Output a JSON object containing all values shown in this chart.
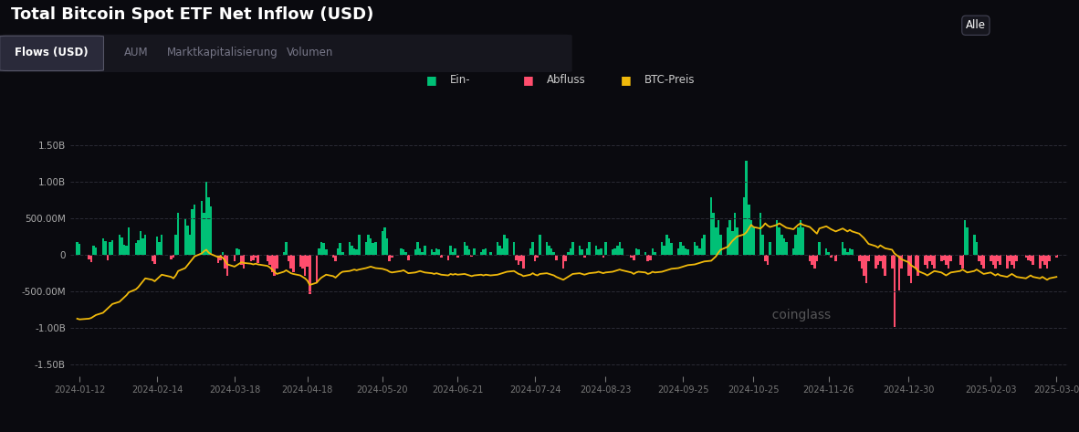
{
  "title": "Total Bitcoin Spot ETF Net Inflow (USD)",
  "background_color": "#0a0a0f",
  "text_color": "#ffffff",
  "tab_labels": [
    "Flows (USD)",
    "AUM",
    "Marktkapitalisierung",
    "Volumen"
  ],
  "dropdown_label": "Alle",
  "ytick_values": [
    -1500000000,
    -1000000000,
    -500000000,
    0,
    500000000,
    1000000000,
    1500000000
  ],
  "ytick_labels": [
    "-1.50B",
    "-1.00B",
    "-500.00M",
    "0",
    "500.00M",
    "1.00B",
    "1.50B"
  ],
  "ylim": [
    -1650000000.0,
    1650000000.0
  ],
  "bar_color_positive": "#00c076",
  "bar_color_negative": "#ff4d6d",
  "line_color": "#f0b90b",
  "grid_color": "#2a2a2a",
  "watermark": "coinglass",
  "xtick_dates": [
    "2024-01-12",
    "2024-02-14",
    "2024-03-18",
    "2024-04-18",
    "2024-05-20",
    "2024-06-21",
    "2024-07-24",
    "2024-08-23",
    "2024-09-25",
    "2024-10-25",
    "2024-11-26",
    "2024-12-30",
    "2025-02-03",
    "2025-03-0"
  ],
  "dates": [
    "2024-01-11",
    "2024-01-12",
    "2024-01-16",
    "2024-01-17",
    "2024-01-18",
    "2024-01-19",
    "2024-01-22",
    "2024-01-23",
    "2024-01-24",
    "2024-01-25",
    "2024-01-26",
    "2024-01-29",
    "2024-01-30",
    "2024-01-31",
    "2024-02-01",
    "2024-02-02",
    "2024-02-05",
    "2024-02-06",
    "2024-02-07",
    "2024-02-08",
    "2024-02-09",
    "2024-02-12",
    "2024-02-13",
    "2024-02-14",
    "2024-02-15",
    "2024-02-16",
    "2024-02-20",
    "2024-02-21",
    "2024-02-22",
    "2024-02-23",
    "2024-02-26",
    "2024-02-27",
    "2024-02-28",
    "2024-02-29",
    "2024-03-01",
    "2024-03-04",
    "2024-03-05",
    "2024-03-06",
    "2024-03-07",
    "2024-03-08",
    "2024-03-11",
    "2024-03-12",
    "2024-03-13",
    "2024-03-14",
    "2024-03-15",
    "2024-03-18",
    "2024-03-19",
    "2024-03-20",
    "2024-03-21",
    "2024-03-22",
    "2024-03-25",
    "2024-03-26",
    "2024-03-27",
    "2024-03-28",
    "2024-04-01",
    "2024-04-02",
    "2024-04-03",
    "2024-04-04",
    "2024-04-05",
    "2024-04-08",
    "2024-04-09",
    "2024-04-10",
    "2024-04-11",
    "2024-04-12",
    "2024-04-15",
    "2024-04-16",
    "2024-04-17",
    "2024-04-18",
    "2024-04-19",
    "2024-04-22",
    "2024-04-23",
    "2024-04-24",
    "2024-04-25",
    "2024-04-26",
    "2024-04-29",
    "2024-04-30",
    "2024-05-01",
    "2024-05-02",
    "2024-05-03",
    "2024-05-06",
    "2024-05-07",
    "2024-05-08",
    "2024-05-09",
    "2024-05-10",
    "2024-05-13",
    "2024-05-14",
    "2024-05-15",
    "2024-05-16",
    "2024-05-17",
    "2024-05-20",
    "2024-05-21",
    "2024-05-22",
    "2024-05-23",
    "2024-05-24",
    "2024-05-28",
    "2024-05-29",
    "2024-05-30",
    "2024-05-31",
    "2024-06-03",
    "2024-06-04",
    "2024-06-05",
    "2024-06-06",
    "2024-06-07",
    "2024-06-10",
    "2024-06-11",
    "2024-06-12",
    "2024-06-13",
    "2024-06-14",
    "2024-06-17",
    "2024-06-18",
    "2024-06-19",
    "2024-06-20",
    "2024-06-21",
    "2024-06-24",
    "2024-06-25",
    "2024-06-26",
    "2024-06-27",
    "2024-06-28",
    "2024-07-01",
    "2024-07-02",
    "2024-07-03",
    "2024-07-05",
    "2024-07-08",
    "2024-07-09",
    "2024-07-10",
    "2024-07-11",
    "2024-07-12",
    "2024-07-15",
    "2024-07-16",
    "2024-07-17",
    "2024-07-18",
    "2024-07-19",
    "2024-07-22",
    "2024-07-23",
    "2024-07-24",
    "2024-07-25",
    "2024-07-26",
    "2024-07-29",
    "2024-07-30",
    "2024-07-31",
    "2024-08-01",
    "2024-08-02",
    "2024-08-05",
    "2024-08-06",
    "2024-08-07",
    "2024-08-08",
    "2024-08-09",
    "2024-08-12",
    "2024-08-13",
    "2024-08-14",
    "2024-08-15",
    "2024-08-16",
    "2024-08-19",
    "2024-08-20",
    "2024-08-21",
    "2024-08-22",
    "2024-08-23",
    "2024-08-26",
    "2024-08-27",
    "2024-08-28",
    "2024-08-29",
    "2024-08-30",
    "2024-09-03",
    "2024-09-04",
    "2024-09-05",
    "2024-09-06",
    "2024-09-09",
    "2024-09-10",
    "2024-09-11",
    "2024-09-12",
    "2024-09-13",
    "2024-09-16",
    "2024-09-17",
    "2024-09-18",
    "2024-09-19",
    "2024-09-20",
    "2024-09-23",
    "2024-09-24",
    "2024-09-25",
    "2024-09-26",
    "2024-09-27",
    "2024-09-30",
    "2024-10-01",
    "2024-10-02",
    "2024-10-03",
    "2024-10-04",
    "2024-10-07",
    "2024-10-08",
    "2024-10-09",
    "2024-10-10",
    "2024-10-11",
    "2024-10-14",
    "2024-10-15",
    "2024-10-16",
    "2024-10-17",
    "2024-10-18",
    "2024-10-21",
    "2024-10-22",
    "2024-10-23",
    "2024-10-24",
    "2024-10-25",
    "2024-10-28",
    "2024-10-29",
    "2024-10-30",
    "2024-10-31",
    "2024-11-01",
    "2024-11-04",
    "2024-11-05",
    "2024-11-06",
    "2024-11-07",
    "2024-11-08",
    "2024-11-11",
    "2024-11-12",
    "2024-11-13",
    "2024-11-14",
    "2024-11-15",
    "2024-11-18",
    "2024-11-19",
    "2024-11-20",
    "2024-11-21",
    "2024-11-22",
    "2024-11-25",
    "2024-11-26",
    "2024-11-27",
    "2024-11-29",
    "2024-12-02",
    "2024-12-03",
    "2024-12-04",
    "2024-12-05",
    "2024-12-06",
    "2024-12-09",
    "2024-12-10",
    "2024-12-11",
    "2024-12-12",
    "2024-12-13",
    "2024-12-16",
    "2024-12-17",
    "2024-12-18",
    "2024-12-19",
    "2024-12-20",
    "2024-12-23",
    "2024-12-24",
    "2024-12-26",
    "2024-12-27",
    "2024-12-30",
    "2024-12-31",
    "2025-01-02",
    "2025-01-03",
    "2025-01-06",
    "2025-01-07",
    "2025-01-08",
    "2025-01-09",
    "2025-01-10",
    "2025-01-13",
    "2025-01-14",
    "2025-01-15",
    "2025-01-16",
    "2025-01-17",
    "2025-01-21",
    "2025-01-22",
    "2025-01-23",
    "2025-01-24",
    "2025-01-27",
    "2025-01-28",
    "2025-01-29",
    "2025-01-30",
    "2025-01-31",
    "2025-02-03",
    "2025-02-04",
    "2025-02-05",
    "2025-02-06",
    "2025-02-07",
    "2025-02-10",
    "2025-02-11",
    "2025-02-12",
    "2025-02-13",
    "2025-02-14",
    "2025-02-18",
    "2025-02-19",
    "2025-02-20",
    "2025-02-21",
    "2025-02-24",
    "2025-02-25",
    "2025-02-26",
    "2025-02-27",
    "2025-02-28",
    "2025-03-03"
  ],
  "flows": [
    180000000.0,
    150000000.0,
    -60000000.0,
    -100000000.0,
    130000000.0,
    100000000.0,
    220000000.0,
    190000000.0,
    -70000000.0,
    170000000.0,
    200000000.0,
    280000000.0,
    240000000.0,
    140000000.0,
    120000000.0,
    380000000.0,
    160000000.0,
    200000000.0,
    330000000.0,
    230000000.0,
    270000000.0,
    -90000000.0,
    -120000000.0,
    250000000.0,
    180000000.0,
    280000000.0,
    -60000000.0,
    -40000000.0,
    280000000.0,
    580000000.0,
    500000000.0,
    400000000.0,
    280000000.0,
    630000000.0,
    680000000.0,
    730000000.0,
    580000000.0,
    1000000000.0,
    780000000.0,
    660000000.0,
    -110000000.0,
    -70000000.0,
    40000000.0,
    -180000000.0,
    -280000000.0,
    -90000000.0,
    90000000.0,
    70000000.0,
    -130000000.0,
    -180000000.0,
    -90000000.0,
    -70000000.0,
    -40000000.0,
    -110000000.0,
    -90000000.0,
    -130000000.0,
    -230000000.0,
    -280000000.0,
    -180000000.0,
    40000000.0,
    180000000.0,
    -90000000.0,
    -180000000.0,
    -230000000.0,
    -160000000.0,
    -180000000.0,
    -280000000.0,
    -160000000.0,
    -530000000.0,
    -380000000.0,
    90000000.0,
    180000000.0,
    160000000.0,
    70000000.0,
    -40000000.0,
    -90000000.0,
    90000000.0,
    160000000.0,
    40000000.0,
    180000000.0,
    130000000.0,
    90000000.0,
    70000000.0,
    280000000.0,
    180000000.0,
    280000000.0,
    230000000.0,
    160000000.0,
    180000000.0,
    330000000.0,
    380000000.0,
    230000000.0,
    -90000000.0,
    -40000000.0,
    90000000.0,
    70000000.0,
    40000000.0,
    -70000000.0,
    70000000.0,
    180000000.0,
    90000000.0,
    40000000.0,
    130000000.0,
    70000000.0,
    40000000.0,
    90000000.0,
    70000000.0,
    -40000000.0,
    -70000000.0,
    130000000.0,
    40000000.0,
    90000000.0,
    -40000000.0,
    180000000.0,
    130000000.0,
    70000000.0,
    -20000000.0,
    90000000.0,
    40000000.0,
    70000000.0,
    90000000.0,
    40000000.0,
    180000000.0,
    130000000.0,
    90000000.0,
    280000000.0,
    230000000.0,
    180000000.0,
    -70000000.0,
    -130000000.0,
    -90000000.0,
    -180000000.0,
    90000000.0,
    180000000.0,
    -90000000.0,
    -40000000.0,
    280000000.0,
    180000000.0,
    130000000.0,
    90000000.0,
    40000000.0,
    -70000000.0,
    -180000000.0,
    -90000000.0,
    40000000.0,
    90000000.0,
    180000000.0,
    130000000.0,
    70000000.0,
    -40000000.0,
    90000000.0,
    180000000.0,
    130000000.0,
    70000000.0,
    90000000.0,
    -40000000.0,
    180000000.0,
    70000000.0,
    90000000.0,
    130000000.0,
    180000000.0,
    90000000.0,
    -40000000.0,
    -70000000.0,
    90000000.0,
    70000000.0,
    40000000.0,
    -90000000.0,
    -70000000.0,
    90000000.0,
    40000000.0,
    180000000.0,
    130000000.0,
    280000000.0,
    230000000.0,
    160000000.0,
    90000000.0,
    180000000.0,
    130000000.0,
    90000000.0,
    70000000.0,
    180000000.0,
    130000000.0,
    90000000.0,
    230000000.0,
    280000000.0,
    780000000.0,
    580000000.0,
    380000000.0,
    480000000.0,
    280000000.0,
    380000000.0,
    480000000.0,
    330000000.0,
    580000000.0,
    380000000.0,
    780000000.0,
    1280000000.0,
    680000000.0,
    480000000.0,
    380000000.0,
    580000000.0,
    280000000.0,
    -90000000.0,
    -130000000.0,
    180000000.0,
    480000000.0,
    380000000.0,
    280000000.0,
    230000000.0,
    180000000.0,
    90000000.0,
    280000000.0,
    380000000.0,
    480000000.0,
    380000000.0,
    -90000000.0,
    -130000000.0,
    -180000000.0,
    -90000000.0,
    180000000.0,
    90000000.0,
    40000000.0,
    -40000000.0,
    -90000000.0,
    180000000.0,
    90000000.0,
    40000000.0,
    90000000.0,
    70000000.0,
    -90000000.0,
    -180000000.0,
    -280000000.0,
    -380000000.0,
    -90000000.0,
    -180000000.0,
    -130000000.0,
    -90000000.0,
    -180000000.0,
    -280000000.0,
    -180000000.0,
    -980000000.0,
    -480000000.0,
    -180000000.0,
    -280000000.0,
    -380000000.0,
    -180000000.0,
    -280000000.0,
    -130000000.0,
    -180000000.0,
    -90000000.0,
    -130000000.0,
    -180000000.0,
    -90000000.0,
    -70000000.0,
    -130000000.0,
    -180000000.0,
    -90000000.0,
    -130000000.0,
    -180000000.0,
    480000000.0,
    380000000.0,
    280000000.0,
    180000000.0,
    -90000000.0,
    -130000000.0,
    -180000000.0,
    -90000000.0,
    -130000000.0,
    -180000000.0,
    -90000000.0,
    -130000000.0,
    -180000000.0,
    -90000000.0,
    -130000000.0,
    -180000000.0,
    -90000000.0,
    -40000000.0,
    -70000000.0,
    -90000000.0,
    -130000000.0,
    -180000000.0,
    -90000000.0,
    -130000000.0,
    -180000000.0,
    -90000000.0,
    -40000000.0
  ],
  "btc_price": [
    -870,
    -880,
    -870,
    -860,
    -840,
    -820,
    -790,
    -760,
    -730,
    -700,
    -670,
    -640,
    -610,
    -580,
    -550,
    -510,
    -470,
    -440,
    -400,
    -360,
    -320,
    -340,
    -360,
    -330,
    -300,
    -270,
    -300,
    -320,
    -280,
    -220,
    -180,
    -140,
    -100,
    -60,
    -20,
    20,
    50,
    70,
    30,
    10,
    -30,
    -20,
    -40,
    -80,
    -130,
    -160,
    -140,
    -120,
    -100,
    -110,
    -120,
    -130,
    -120,
    -130,
    -150,
    -170,
    -200,
    -230,
    -260,
    -230,
    -210,
    -230,
    -250,
    -260,
    -280,
    -300,
    -320,
    -350,
    -410,
    -380,
    -340,
    -310,
    -290,
    -270,
    -290,
    -310,
    -280,
    -250,
    -230,
    -220,
    -210,
    -200,
    -210,
    -200,
    -180,
    -170,
    -160,
    -170,
    -180,
    -190,
    -200,
    -210,
    -230,
    -240,
    -220,
    -210,
    -230,
    -250,
    -240,
    -230,
    -220,
    -230,
    -240,
    -250,
    -260,
    -250,
    -260,
    -270,
    -280,
    -260,
    -270,
    -260,
    -270,
    -260,
    -270,
    -280,
    -290,
    -280,
    -270,
    -280,
    -270,
    -280,
    -270,
    -260,
    -250,
    -240,
    -230,
    -220,
    -240,
    -260,
    -270,
    -290,
    -270,
    -250,
    -270,
    -280,
    -260,
    -250,
    -260,
    -270,
    -280,
    -300,
    -340,
    -320,
    -300,
    -280,
    -260,
    -250,
    -260,
    -270,
    -260,
    -250,
    -240,
    -230,
    -240,
    -250,
    -240,
    -230,
    -220,
    -210,
    -200,
    -210,
    -240,
    -260,
    -240,
    -230,
    -240,
    -260,
    -250,
    -230,
    -240,
    -230,
    -220,
    -210,
    -200,
    -190,
    -180,
    -170,
    -160,
    -150,
    -140,
    -130,
    -120,
    -110,
    -100,
    -90,
    -80,
    -50,
    -20,
    30,
    70,
    110,
    150,
    190,
    220,
    250,
    280,
    310,
    360,
    410,
    380,
    360,
    390,
    430,
    400,
    380,
    410,
    430,
    410,
    390,
    370,
    350,
    380,
    410,
    430,
    410,
    380,
    350,
    320,
    290,
    360,
    390,
    370,
    350,
    320,
    360,
    340,
    320,
    340,
    320,
    290,
    260,
    230,
    190,
    150,
    120,
    100,
    130,
    110,
    90,
    70,
    20,
    -30,
    -60,
    -100,
    -140,
    -180,
    -220,
    -260,
    -280,
    -260,
    -240,
    -220,
    -240,
    -260,
    -280,
    -260,
    -240,
    -220,
    -200,
    -220,
    -240,
    -220,
    -200,
    -220,
    -240,
    -260,
    -240,
    -260,
    -280,
    -260,
    -280,
    -300,
    -280,
    -260,
    -280,
    -300,
    -320,
    -300,
    -280,
    -300,
    -320,
    -300,
    -320,
    -340,
    -320,
    -300
  ]
}
